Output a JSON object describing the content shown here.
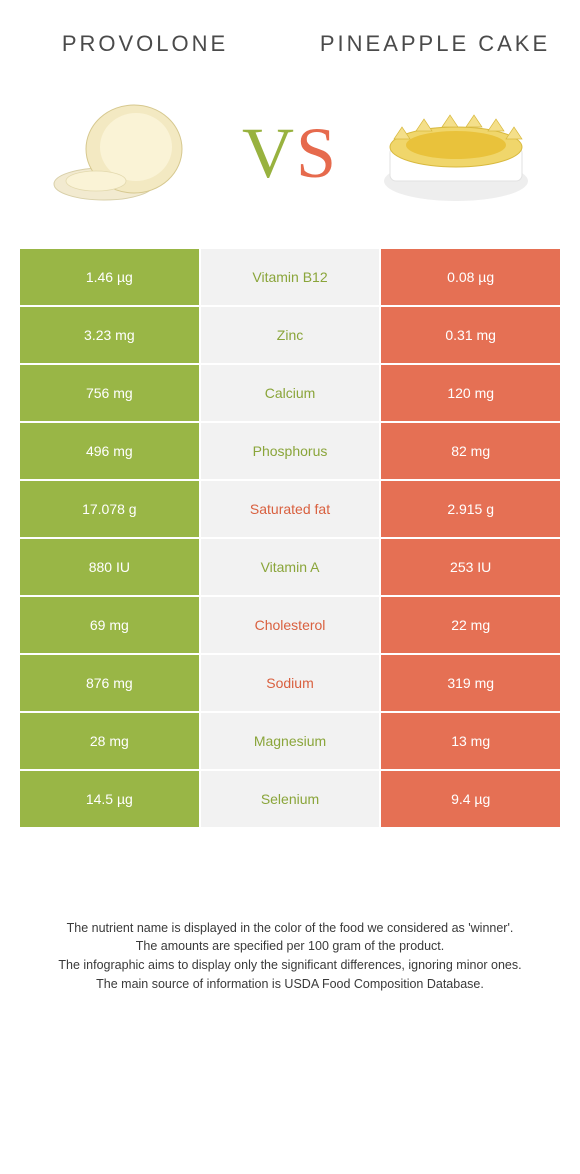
{
  "header": {
    "left_title": "Provolone",
    "right_title": "Pineapple cake",
    "vs_v": "V",
    "vs_s": "S"
  },
  "colors": {
    "left_bg": "#99b646",
    "right_bg": "#e57054",
    "mid_bg": "#f2f2f2",
    "mid_green": "#8aa53a",
    "mid_orange": "#d9603f",
    "cell_text": "#ffffff",
    "title_text": "#4a4a4a",
    "footer_text": "#3a3a3a",
    "page_bg": "#ffffff"
  },
  "typography": {
    "title_fontsize": 22,
    "title_letterspacing": 3,
    "vs_fontsize": 72,
    "cell_fontsize": 14,
    "footer_fontsize": 12.5
  },
  "rows": [
    {
      "left": "1.46 µg",
      "label": "Vitamin B12",
      "right": "0.08 µg",
      "winner": "left"
    },
    {
      "left": "3.23 mg",
      "label": "Zinc",
      "right": "0.31 mg",
      "winner": "left"
    },
    {
      "left": "756 mg",
      "label": "Calcium",
      "right": "120 mg",
      "winner": "left"
    },
    {
      "left": "496 mg",
      "label": "Phosphorus",
      "right": "82 mg",
      "winner": "left"
    },
    {
      "left": "17.078 g",
      "label": "Saturated fat",
      "right": "2.915 g",
      "winner": "right"
    },
    {
      "left": "880 IU",
      "label": "Vitamin A",
      "right": "253 IU",
      "winner": "left"
    },
    {
      "left": "69 mg",
      "label": "Cholesterol",
      "right": "22 mg",
      "winner": "right"
    },
    {
      "left": "876 mg",
      "label": "Sodium",
      "right": "319 mg",
      "winner": "right"
    },
    {
      "left": "28 mg",
      "label": "Magnesium",
      "right": "13 mg",
      "winner": "left"
    },
    {
      "left": "14.5 µg",
      "label": "Selenium",
      "right": "9.4 µg",
      "winner": "left"
    }
  ],
  "footer": {
    "line1": "The nutrient name is displayed in the color of the food we considered as 'winner'.",
    "line2": "The amounts are specified per 100 gram of the product.",
    "line3": "The infographic aims to display only the significant differences, ignoring minor ones.",
    "line4": "The main source of information is USDA Food Composition Database."
  }
}
